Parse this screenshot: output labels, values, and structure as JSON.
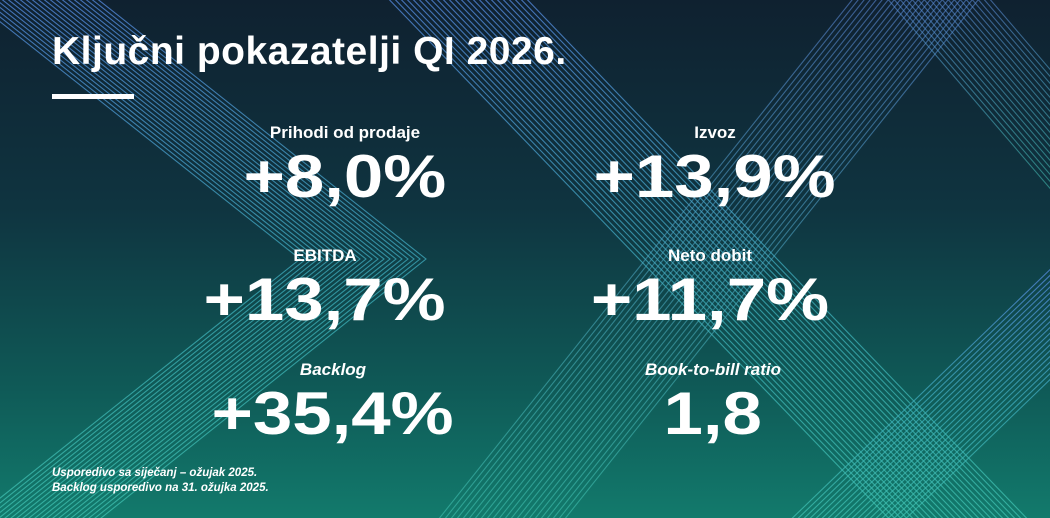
{
  "title": "Ključni pokazatelji QI 2026.",
  "metrics": [
    {
      "label": "Prihodi od prodaje",
      "value": "+8,0%"
    },
    {
      "label": "Izvoz",
      "value": "+13,9%"
    },
    {
      "label": "EBITDA",
      "value": "+13,7%"
    },
    {
      "label": "Neto dobit",
      "value": "+11,7%"
    },
    {
      "label": "Backlog",
      "value": "+35,4%"
    },
    {
      "label": "Book-to-bill ratio",
      "value": "1,8"
    }
  ],
  "footnotes": [
    "Usporedivo sa siječanj – ožujak 2025.",
    "Backlog usporedivo na 31. ožujka 2025."
  ],
  "colors": {
    "text": "#ffffff",
    "bg_top": "#0f2130",
    "bg_bottom": "#127a6c",
    "line_blue": "#4f7fd0",
    "line_teal": "#3fc3b0"
  }
}
